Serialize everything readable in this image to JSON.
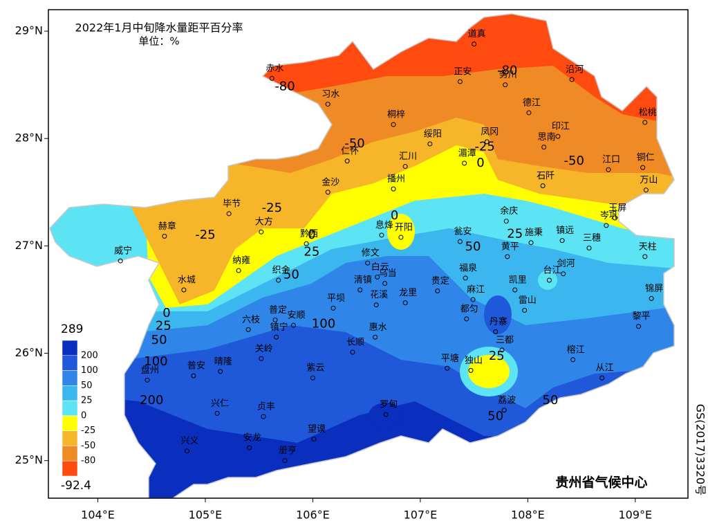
{
  "title": "2022年1月中旬降水量距平百分率",
  "unit": "单位：%",
  "credit": "贵州省气候中心",
  "map_number": "GS(2017)3320号",
  "xlim": [
    103.54,
    109.49
  ],
  "ylim": [
    24.65,
    29.2
  ],
  "xticks": [
    {
      "value": 104,
      "label": "104°E"
    },
    {
      "value": 105,
      "label": "105°E"
    },
    {
      "value": 106,
      "label": "106°E"
    },
    {
      "value": 107,
      "label": "107°E"
    },
    {
      "value": 108,
      "label": "108°E"
    },
    {
      "value": 109,
      "label": "109°E"
    }
  ],
  "yticks": [
    {
      "value": 25,
      "label": "25°N"
    },
    {
      "value": 26,
      "label": "26°N"
    },
    {
      "value": 27,
      "label": "27°N"
    },
    {
      "value": 28,
      "label": "28°N"
    },
    {
      "value": 29,
      "label": "29°N"
    }
  ],
  "legend": {
    "max": 289,
    "min": -92.4,
    "levels": [
      200,
      100,
      50,
      25,
      0,
      -25,
      -50,
      -80
    ],
    "colors": [
      "#0a2fbf",
      "#1f58d9",
      "#2f86e8",
      "#3bb6ef",
      "#5ce4f4",
      "#ffff00",
      "#f7b52a",
      "#f08a25",
      "#ff4a10"
    ]
  },
  "cities": [
    {
      "name": "道真",
      "lon": 107.5,
      "lat": 28.88
    },
    {
      "name": "赤水",
      "lon": 105.62,
      "lat": 28.56
    },
    {
      "name": "正安",
      "lon": 107.37,
      "lat": 28.53
    },
    {
      "name": "务川",
      "lon": 107.79,
      "lat": 28.5
    },
    {
      "name": "沿河",
      "lon": 108.41,
      "lat": 28.55
    },
    {
      "name": "习水",
      "lon": 106.14,
      "lat": 28.32
    },
    {
      "name": "桐梓",
      "lon": 106.75,
      "lat": 28.13
    },
    {
      "name": "德江",
      "lon": 108.01,
      "lat": 28.24
    },
    {
      "name": "松桃",
      "lon": 109.09,
      "lat": 28.15
    },
    {
      "name": "绥阳",
      "lon": 107.09,
      "lat": 27.95
    },
    {
      "name": "凤冈",
      "lon": 107.62,
      "lat": 27.97
    },
    {
      "name": "印江",
      "lon": 108.28,
      "lat": 28.02
    },
    {
      "name": "思南",
      "lon": 108.15,
      "lat": 27.92
    },
    {
      "name": "仁怀",
      "lon": 106.32,
      "lat": 27.79
    },
    {
      "name": "汇川",
      "lon": 106.86,
      "lat": 27.74
    },
    {
      "name": "湄潭",
      "lon": 107.41,
      "lat": 27.77
    },
    {
      "name": "江口",
      "lon": 108.75,
      "lat": 27.71
    },
    {
      "name": "铜仁",
      "lon": 109.07,
      "lat": 27.73
    },
    {
      "name": "石阡",
      "lon": 108.14,
      "lat": 27.56
    },
    {
      "name": "万山",
      "lon": 109.1,
      "lat": 27.52
    },
    {
      "name": "金沙",
      "lon": 106.14,
      "lat": 27.5
    },
    {
      "name": "播州",
      "lon": 106.75,
      "lat": 27.53
    },
    {
      "name": "毕节",
      "lon": 105.22,
      "lat": 27.3
    },
    {
      "name": "大方",
      "lon": 105.52,
      "lat": 27.13
    },
    {
      "name": "赫章",
      "lon": 104.62,
      "lat": 27.09
    },
    {
      "name": "黔西",
      "lon": 105.94,
      "lat": 27.02
    },
    {
      "name": "息烽",
      "lon": 106.64,
      "lat": 27.1
    },
    {
      "name": "开阳",
      "lon": 106.82,
      "lat": 27.08
    },
    {
      "name": "余庆",
      "lon": 107.8,
      "lat": 27.23
    },
    {
      "name": "瓮安",
      "lon": 107.37,
      "lat": 27.04
    },
    {
      "name": "施秉",
      "lon": 108.03,
      "lat": 27.03
    },
    {
      "name": "镇远",
      "lon": 108.32,
      "lat": 27.05
    },
    {
      "name": "三穗",
      "lon": 108.57,
      "lat": 26.98
    },
    {
      "name": "岑巩",
      "lon": 108.73,
      "lat": 27.19
    },
    {
      "name": "玉屏",
      "lon": 108.81,
      "lat": 27.26
    },
    {
      "name": "天柱",
      "lon": 109.09,
      "lat": 26.9
    },
    {
      "name": "威宁",
      "lon": 104.21,
      "lat": 26.86
    },
    {
      "name": "纳雍",
      "lon": 105.31,
      "lat": 26.77
    },
    {
      "name": "黄平",
      "lon": 107.81,
      "lat": 26.9
    },
    {
      "name": "修文",
      "lon": 106.51,
      "lat": 26.84
    },
    {
      "name": "织金",
      "lon": 105.68,
      "lat": 26.68
    },
    {
      "name": "白云",
      "lon": 106.6,
      "lat": 26.71
    },
    {
      "name": "乌当",
      "lon": 106.67,
      "lat": 26.65
    },
    {
      "name": "清镇",
      "lon": 106.44,
      "lat": 26.59
    },
    {
      "name": "贵定",
      "lon": 107.16,
      "lat": 26.58
    },
    {
      "name": "凯里",
      "lon": 107.88,
      "lat": 26.59
    },
    {
      "name": "剑河",
      "lon": 108.33,
      "lat": 26.74
    },
    {
      "name": "台江",
      "lon": 108.2,
      "lat": 26.68
    },
    {
      "name": "水城",
      "lon": 104.8,
      "lat": 26.59
    },
    {
      "name": "锦屏",
      "lon": 109.15,
      "lat": 26.51
    },
    {
      "name": "福泉",
      "lon": 107.42,
      "lat": 26.7
    },
    {
      "name": "麻江",
      "lon": 107.49,
      "lat": 26.5
    },
    {
      "name": "雷山",
      "lon": 107.97,
      "lat": 26.4
    },
    {
      "name": "平坝",
      "lon": 106.19,
      "lat": 26.42
    },
    {
      "name": "花溪",
      "lon": 106.59,
      "lat": 26.45
    },
    {
      "name": "龙里",
      "lon": 106.86,
      "lat": 26.47
    },
    {
      "name": "都匀",
      "lon": 107.43,
      "lat": 26.32
    },
    {
      "name": "丹寨",
      "lon": 107.7,
      "lat": 26.2
    },
    {
      "name": "普定",
      "lon": 105.65,
      "lat": 26.31
    },
    {
      "name": "安顺",
      "lon": 105.82,
      "lat": 26.26
    },
    {
      "name": "六枝",
      "lon": 105.4,
      "lat": 26.22
    },
    {
      "name": "镇宁",
      "lon": 105.66,
      "lat": 26.15
    },
    {
      "name": "黎平",
      "lon": 109.03,
      "lat": 26.25
    },
    {
      "name": "惠水",
      "lon": 106.58,
      "lat": 26.15
    },
    {
      "name": "关岭",
      "lon": 105.52,
      "lat": 25.95
    },
    {
      "name": "长顺",
      "lon": 106.37,
      "lat": 26.01
    },
    {
      "name": "三都",
      "lon": 107.76,
      "lat": 26.03
    },
    {
      "name": "榕江",
      "lon": 108.42,
      "lat": 25.94
    },
    {
      "name": "平塘",
      "lon": 107.25,
      "lat": 25.86
    },
    {
      "name": "独山",
      "lon": 107.47,
      "lat": 25.84
    },
    {
      "name": "盘州",
      "lon": 104.46,
      "lat": 25.75
    },
    {
      "name": "普安",
      "lon": 104.89,
      "lat": 25.79
    },
    {
      "name": "晴隆",
      "lon": 105.14,
      "lat": 25.83
    },
    {
      "name": "紫云",
      "lon": 106.0,
      "lat": 25.77
    },
    {
      "name": "从江",
      "lon": 108.69,
      "lat": 25.77
    },
    {
      "name": "兴仁",
      "lon": 105.11,
      "lat": 25.44
    },
    {
      "name": "贞丰",
      "lon": 105.54,
      "lat": 25.41
    },
    {
      "name": "罗甸",
      "lon": 106.68,
      "lat": 25.43
    },
    {
      "name": "荔波",
      "lon": 107.78,
      "lat": 25.47
    },
    {
      "name": "望谟",
      "lon": 106.01,
      "lat": 25.2
    },
    {
      "name": "兴义",
      "lon": 104.83,
      "lat": 25.09
    },
    {
      "name": "安龙",
      "lon": 105.41,
      "lat": 25.12
    },
    {
      "name": "册亨",
      "lon": 105.74,
      "lat": 25.0
    }
  ],
  "contour_labels": [
    {
      "value": -80,
      "lon": 105.74,
      "lat": 28.48
    },
    {
      "value": -80,
      "lon": 107.81,
      "lat": 28.63
    },
    {
      "value": -50,
      "lon": 106.39,
      "lat": 27.95
    },
    {
      "value": -25,
      "lon": 107.6,
      "lat": 27.92
    },
    {
      "value": 0,
      "lon": 107.56,
      "lat": 27.77
    },
    {
      "value": -50,
      "lon": 108.43,
      "lat": 27.79
    },
    {
      "value": -25,
      "lon": 105.62,
      "lat": 27.35
    },
    {
      "value": -25,
      "lon": 105.0,
      "lat": 27.1
    },
    {
      "value": 0,
      "lon": 106.76,
      "lat": 27.28
    },
    {
      "value": 0,
      "lon": 105.99,
      "lat": 27.1
    },
    {
      "value": 25,
      "lon": 105.99,
      "lat": 26.94
    },
    {
      "value": 25,
      "lon": 107.88,
      "lat": 27.11
    },
    {
      "value": 50,
      "lon": 107.49,
      "lat": 26.99
    },
    {
      "value": 50,
      "lon": 105.8,
      "lat": 26.73
    },
    {
      "value": 100,
      "lon": 106.1,
      "lat": 26.27
    },
    {
      "value": 0,
      "lon": 104.64,
      "lat": 26.37
    },
    {
      "value": 25,
      "lon": 104.61,
      "lat": 26.25
    },
    {
      "value": 50,
      "lon": 104.57,
      "lat": 26.12
    },
    {
      "value": 100,
      "lon": 104.54,
      "lat": 25.92
    },
    {
      "value": 200,
      "lon": 104.5,
      "lat": 25.56
    },
    {
      "value": 25,
      "lon": 107.71,
      "lat": 25.97
    },
    {
      "value": 50,
      "lon": 107.7,
      "lat": 25.41
    },
    {
      "value": 50,
      "lon": 108.21,
      "lat": 25.56
    }
  ]
}
